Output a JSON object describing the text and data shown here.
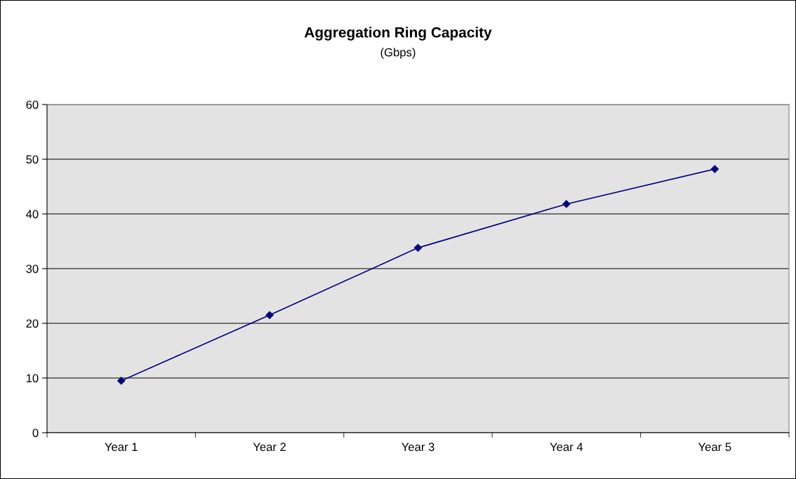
{
  "chart_data": {
    "type": "line",
    "title": "Aggregation Ring Capacity",
    "subtitle": "(Gbps)",
    "categories": [
      "Year 1",
      "Year 2",
      "Year 3",
      "Year 4",
      "Year 5"
    ],
    "series": [
      {
        "color": "#000080",
        "values": [
          9.5,
          21.5,
          33.8,
          41.8,
          48.2
        ]
      }
    ],
    "ylim": [
      0,
      60
    ],
    "yticks": [
      0,
      10,
      20,
      30,
      40,
      50,
      60
    ],
    "grid": "y",
    "marker": "diamond",
    "line_style": "solid"
  }
}
